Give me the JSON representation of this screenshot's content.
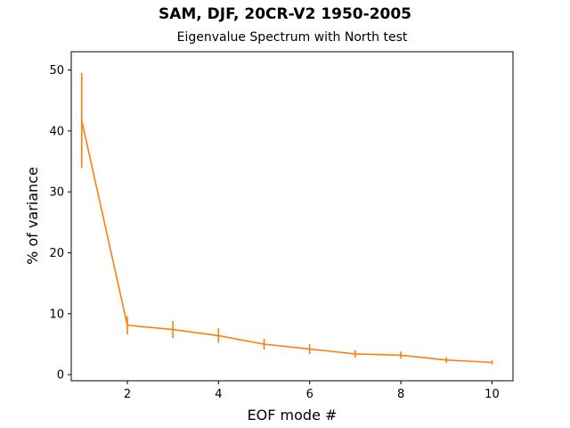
{
  "chart_data": {
    "type": "line",
    "title": "SAM, DJF, 20CR-V2 1950-2005",
    "subtitle": "Eigenvalue Spectrum with North test",
    "xlabel": "EOF mode #",
    "ylabel": "% of variance",
    "x": [
      1,
      2,
      3,
      4,
      5,
      6,
      7,
      8,
      9,
      10
    ],
    "series": [
      {
        "values": [
          41.7,
          8.1,
          7.4,
          6.4,
          5.0,
          4.2,
          3.4,
          3.2,
          2.4,
          2.0
        ],
        "error": [
          7.8,
          1.5,
          1.4,
          1.2,
          0.9,
          0.8,
          0.6,
          0.6,
          0.45,
          0.35
        ],
        "color": "#ff7f0e",
        "line_color": "#ff7f0e"
      }
    ],
    "xlim": [
      0.77,
      10.46
    ],
    "ylim": [
      -1.0,
      53.0
    ],
    "xticks": [
      2,
      4,
      6,
      8,
      10
    ],
    "yticks": [
      0,
      10,
      20,
      30,
      40,
      50
    ],
    "grid": false,
    "legend": "none"
  }
}
